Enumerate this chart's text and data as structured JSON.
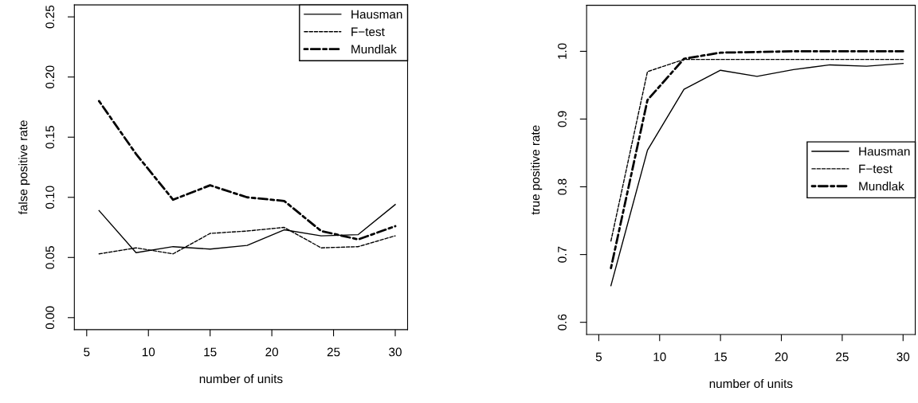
{
  "chart_data": [
    {
      "type": "line",
      "xlabel": "number of units",
      "ylabel": "false positive rate",
      "x": [
        6,
        9,
        12,
        15,
        18,
        21,
        24,
        27,
        30
      ],
      "xlim": [
        4,
        31
      ],
      "xticks": [
        5,
        10,
        15,
        20,
        25,
        30
      ],
      "ylim": [
        -0.01,
        0.26
      ],
      "yticks": [
        {
          "value": 0,
          "label": "0.00"
        },
        0.05,
        {
          "value": 0.1,
          "label": "0.10"
        },
        0.15,
        {
          "value": 0.2,
          "label": "0.20"
        },
        0.25
      ],
      "grid": false,
      "legend": "top right",
      "marker": "none",
      "series": [
        {
          "name": "Hausman",
          "color": "#000000",
          "line_style": "solid",
          "values": [
            0.089,
            0.054,
            0.059,
            0.057,
            0.06,
            0.073,
            0.068,
            0.069,
            0.094
          ]
        },
        {
          "name": "F−test",
          "color": "#000000",
          "line_style": "dashed",
          "values": [
            0.053,
            0.058,
            0.053,
            0.07,
            0.072,
            0.075,
            0.058,
            0.059,
            0.068
          ]
        },
        {
          "name": "Mundlak",
          "color": "#000000",
          "line_style": "dashdot",
          "values": [
            0.18,
            0.136,
            0.098,
            0.11,
            0.1,
            0.097,
            0.072,
            0.065,
            0.076
          ]
        }
      ]
    },
    {
      "type": "line",
      "xlabel": "number of units",
      "ylabel": "true positive rate",
      "x": [
        6,
        9,
        12,
        15,
        18,
        21,
        24,
        27,
        30
      ],
      "xlim": [
        4,
        31
      ],
      "xticks": [
        5,
        10,
        15,
        20,
        25,
        30
      ],
      "ylim": [
        0.582,
        1.068
      ],
      "yticks": [
        0.6,
        0.7,
        0.8,
        0.9,
        {
          "value": 1.0,
          "label": "1.0"
        }
      ],
      "grid": false,
      "legend": "right",
      "marker": "none",
      "series": [
        {
          "name": "Hausman",
          "color": "#000000",
          "line_style": "solid",
          "values": [
            0.654,
            0.854,
            0.944,
            0.972,
            0.963,
            0.973,
            0.98,
            0.978,
            0.982
          ]
        },
        {
          "name": "F−test",
          "color": "#000000",
          "line_style": "dashed",
          "values": [
            0.72,
            0.97,
            0.988,
            0.988,
            0.988,
            0.988,
            0.988,
            0.988,
            0.988
          ]
        },
        {
          "name": "Mundlak",
          "color": "#000000",
          "line_style": "dashdot",
          "values": [
            0.68,
            0.928,
            0.989,
            0.998,
            0.999,
            1.0,
            1.0,
            1.0,
            1.0
          ]
        }
      ]
    }
  ]
}
